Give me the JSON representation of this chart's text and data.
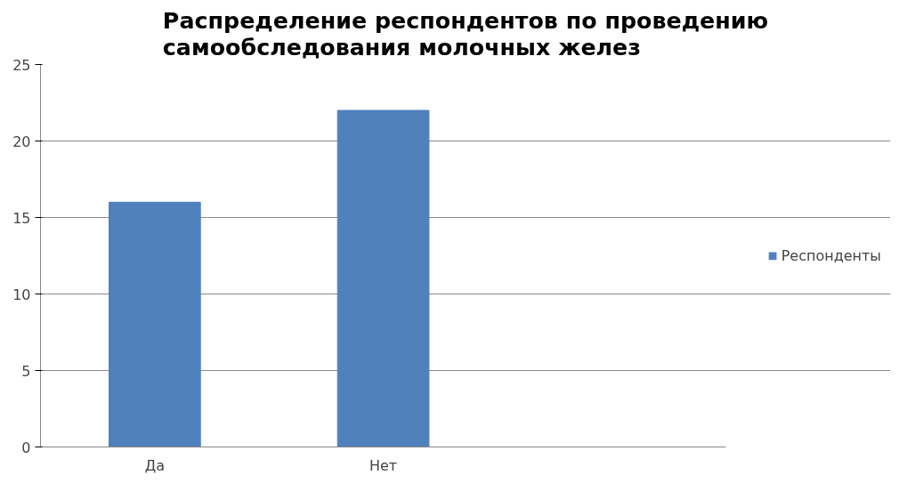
{
  "chart_data": {
    "type": "bar",
    "title": "Распределение респондентов по проведению самообследования молочных желез",
    "categories": [
      "Да",
      "Нет",
      null
    ],
    "series": [
      {
        "name": "Респонденты",
        "color": "#4f81bd",
        "values": [
          16,
          22,
          null
        ]
      }
    ],
    "ylim": [
      0,
      25
    ],
    "yticks": [
      0,
      5,
      10,
      15,
      20,
      25
    ],
    "grid": "y",
    "legend": "right"
  }
}
